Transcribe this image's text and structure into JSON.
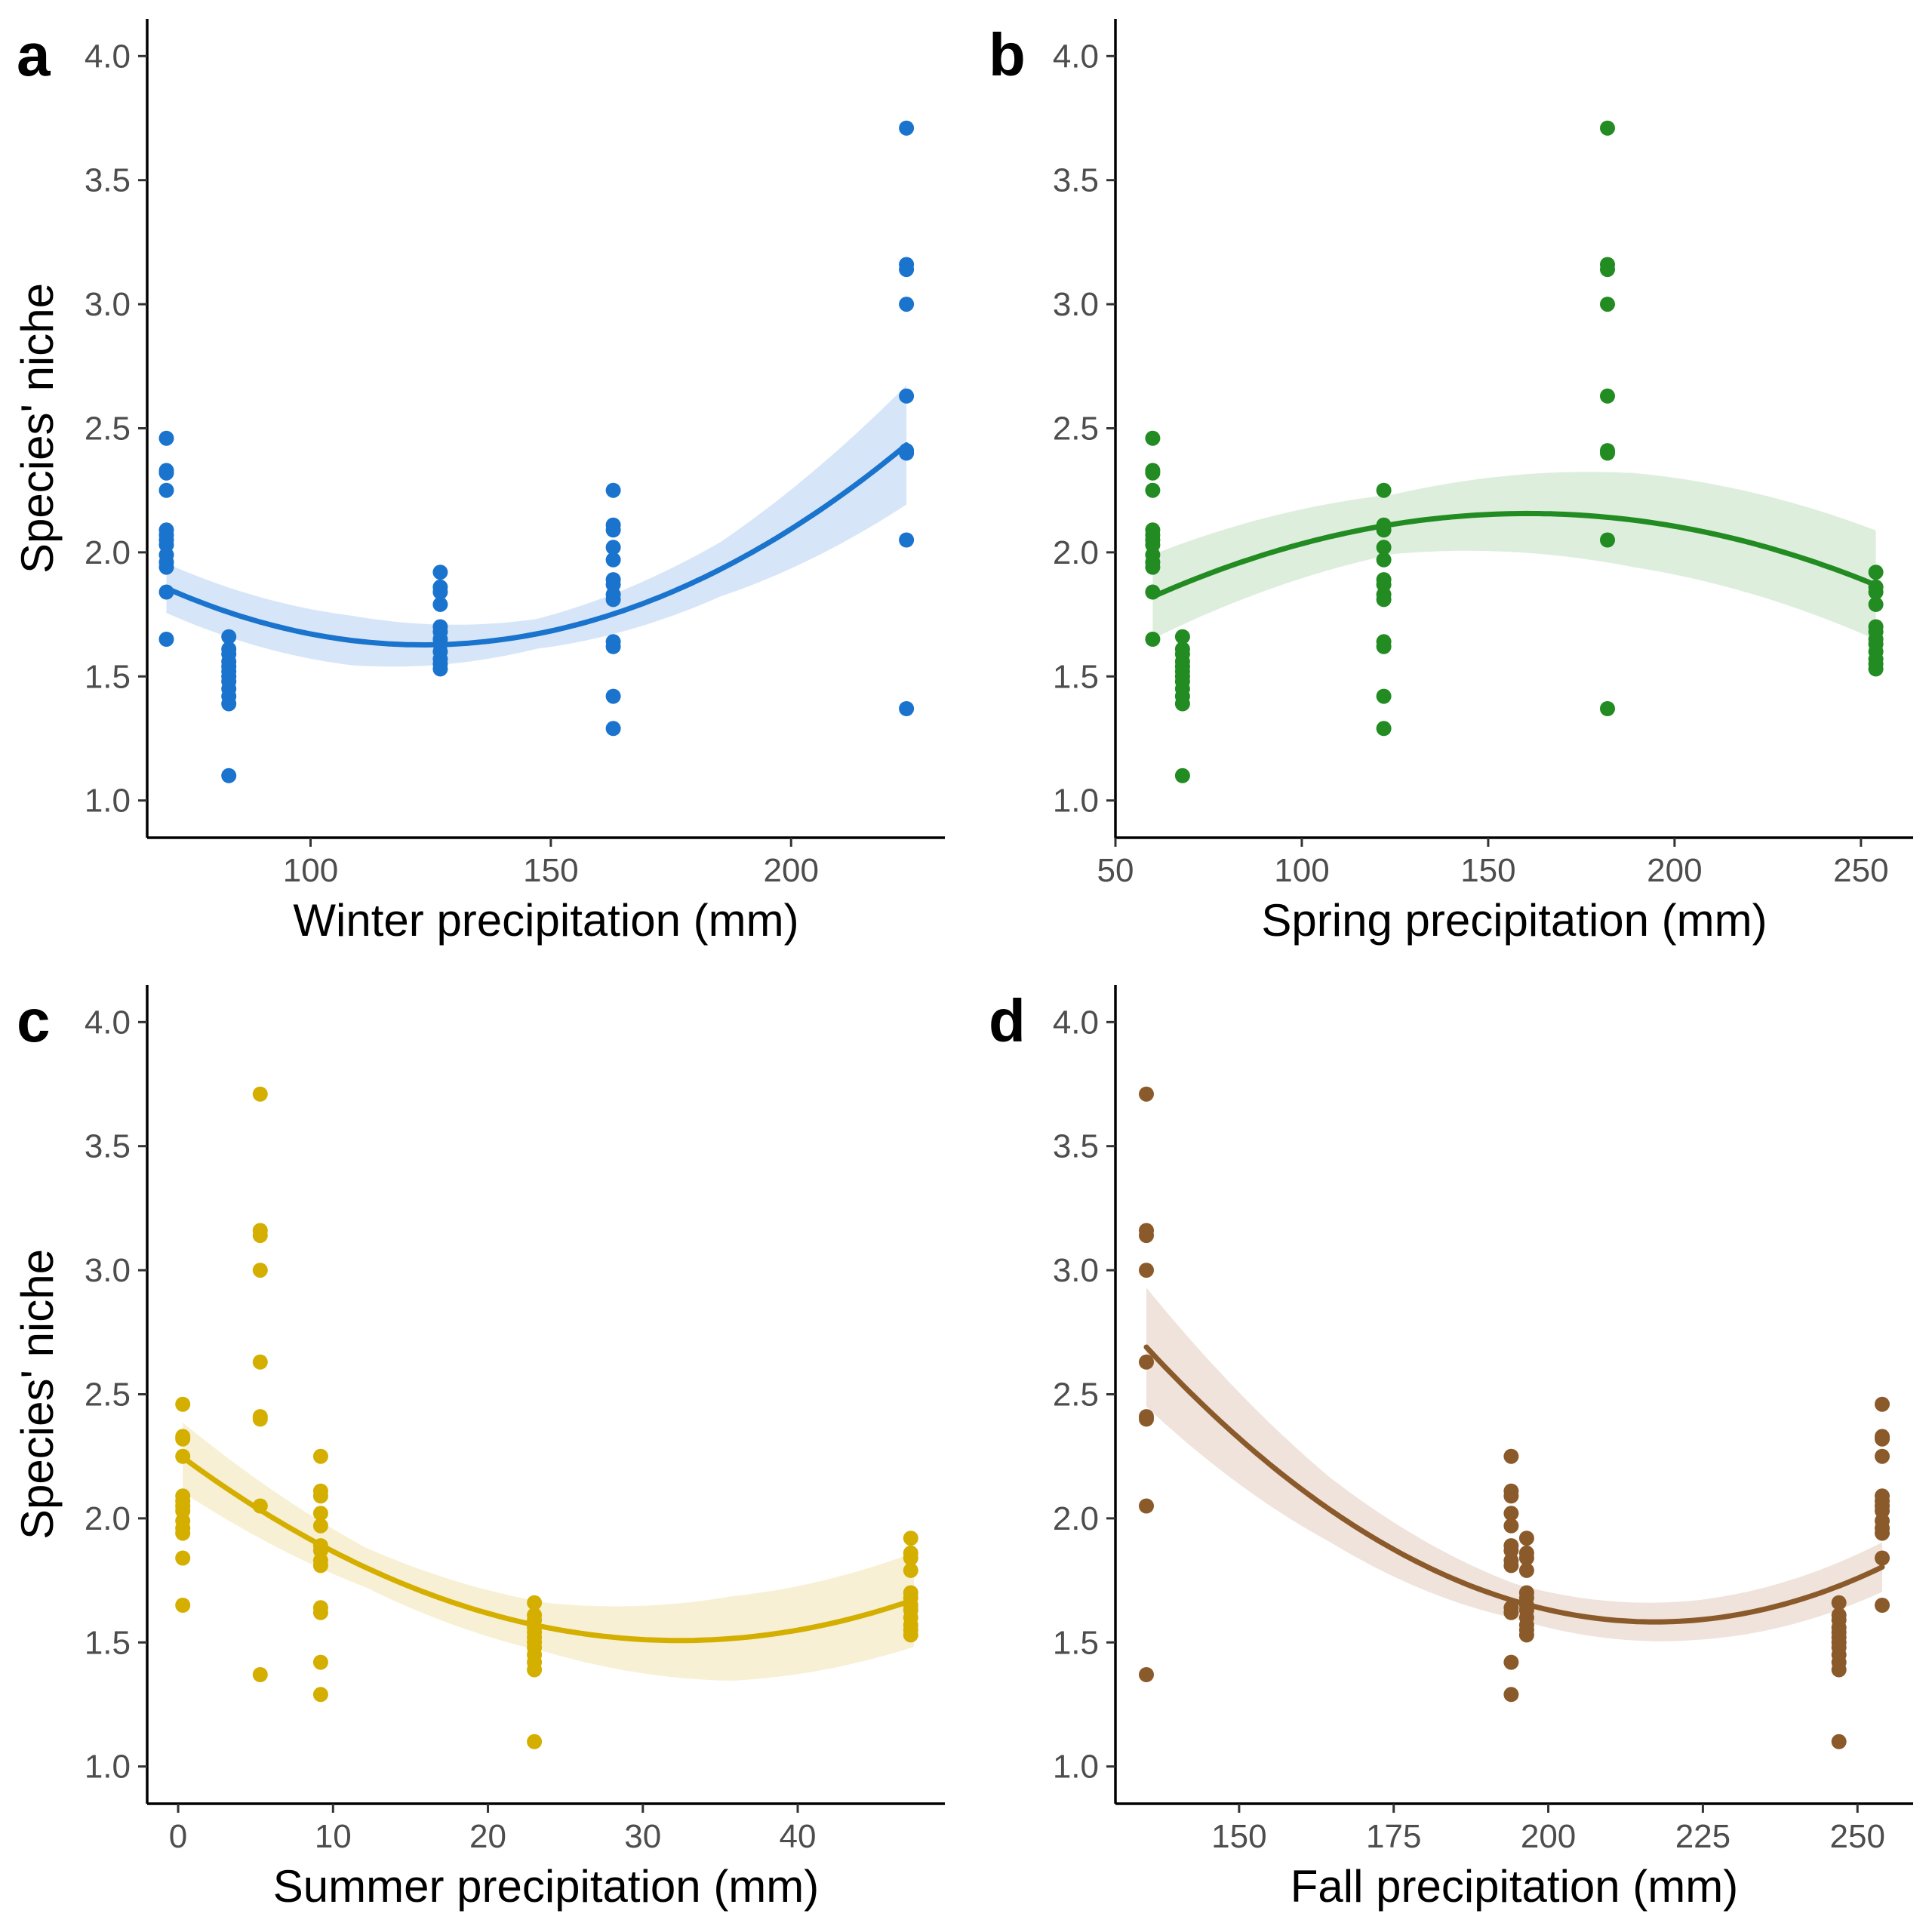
{
  "chart_data": [
    {
      "type": "scatter",
      "panel": "a",
      "xlabel": "Winter precipitation (mm)",
      "ylabel": "Species' niche",
      "xlim": [
        66,
        232
      ],
      "ylim": [
        0.85,
        4.15
      ],
      "xticks": [
        100,
        150,
        200
      ],
      "yticks": [
        1.0,
        1.5,
        2.0,
        2.5,
        3.0,
        3.5,
        4.0
      ],
      "color": "#1a73cc",
      "band_color": "#d6e6f8",
      "fit": {
        "method": "quadratic",
        "coef": [
          2.8445,
          -0.019712,
          7.98e-05
        ],
        "x_range": [
          70,
          224
        ],
        "se": [
          0.1,
          0.1,
          0.06,
          0.11,
          0.24
        ]
      },
      "points": [
        [
          70,
          2.46
        ],
        [
          70,
          2.33
        ],
        [
          70,
          2.32
        ],
        [
          70,
          2.25
        ],
        [
          70,
          2.09
        ],
        [
          70,
          2.07
        ],
        [
          70,
          2.05
        ],
        [
          70,
          2.03
        ],
        [
          70,
          1.99
        ],
        [
          70,
          1.96
        ],
        [
          70,
          1.94
        ],
        [
          70,
          1.84
        ],
        [
          70,
          1.65
        ],
        [
          83,
          1.66
        ],
        [
          83,
          1.61
        ],
        [
          83,
          1.59
        ],
        [
          83,
          1.56
        ],
        [
          83,
          1.54
        ],
        [
          83,
          1.52
        ],
        [
          83,
          1.5
        ],
        [
          83,
          1.48
        ],
        [
          83,
          1.45
        ],
        [
          83,
          1.42
        ],
        [
          83,
          1.39
        ],
        [
          83,
          1.1
        ],
        [
          127,
          1.92
        ],
        [
          127,
          1.86
        ],
        [
          127,
          1.84
        ],
        [
          127,
          1.79
        ],
        [
          127,
          1.7
        ],
        [
          127,
          1.68
        ],
        [
          127,
          1.65
        ],
        [
          127,
          1.63
        ],
        [
          127,
          1.6
        ],
        [
          127,
          1.57
        ],
        [
          127,
          1.55
        ],
        [
          127,
          1.53
        ],
        [
          163,
          2.25
        ],
        [
          163,
          2.11
        ],
        [
          163,
          2.09
        ],
        [
          163,
          2.02
        ],
        [
          163,
          1.97
        ],
        [
          163,
          1.89
        ],
        [
          163,
          1.87
        ],
        [
          163,
          1.83
        ],
        [
          163,
          1.81
        ],
        [
          163,
          1.64
        ],
        [
          163,
          1.62
        ],
        [
          163,
          1.42
        ],
        [
          163,
          1.29
        ],
        [
          224,
          3.71
        ],
        [
          224,
          3.16
        ],
        [
          224,
          3.14
        ],
        [
          224,
          3.0
        ],
        [
          224,
          2.63
        ],
        [
          224,
          2.41
        ],
        [
          224,
          2.4
        ],
        [
          224,
          2.05
        ],
        [
          224,
          1.37
        ]
      ]
    },
    {
      "type": "scatter",
      "panel": "b",
      "xlabel": "Spring precipitation (mm)",
      "ylabel": "",
      "xlim": [
        50,
        264
      ],
      "ylim": [
        0.85,
        4.15
      ],
      "xticks": [
        50,
        100,
        150,
        200,
        250
      ],
      "yticks": [
        1.0,
        1.5,
        2.0,
        2.5,
        3.0,
        3.5,
        4.0
      ],
      "color": "#228b22",
      "band_color": "#ddeedd",
      "fit": {
        "method": "quadratic",
        "coef": [
          1.3019,
          0.010637,
          -3.31e-05
        ],
        "x_range": [
          60,
          254
        ],
        "se": [
          0.17,
          0.12,
          0.19,
          0.22
        ]
      },
      "points": [
        [
          60,
          2.46
        ],
        [
          60,
          2.33
        ],
        [
          60,
          2.32
        ],
        [
          60,
          2.25
        ],
        [
          60,
          2.09
        ],
        [
          60,
          2.07
        ],
        [
          60,
          2.05
        ],
        [
          60,
          2.03
        ],
        [
          60,
          1.99
        ],
        [
          60,
          1.96
        ],
        [
          60,
          1.94
        ],
        [
          60,
          1.84
        ],
        [
          60,
          1.65
        ],
        [
          68,
          1.66
        ],
        [
          68,
          1.61
        ],
        [
          68,
          1.59
        ],
        [
          68,
          1.56
        ],
        [
          68,
          1.54
        ],
        [
          68,
          1.52
        ],
        [
          68,
          1.5
        ],
        [
          68,
          1.48
        ],
        [
          68,
          1.45
        ],
        [
          68,
          1.42
        ],
        [
          68,
          1.39
        ],
        [
          68,
          1.1
        ],
        [
          122,
          2.25
        ],
        [
          122,
          2.11
        ],
        [
          122,
          2.09
        ],
        [
          122,
          2.02
        ],
        [
          122,
          1.97
        ],
        [
          122,
          1.89
        ],
        [
          122,
          1.87
        ],
        [
          122,
          1.83
        ],
        [
          122,
          1.81
        ],
        [
          122,
          1.64
        ],
        [
          122,
          1.62
        ],
        [
          122,
          1.42
        ],
        [
          122,
          1.29
        ],
        [
          182,
          3.71
        ],
        [
          182,
          3.16
        ],
        [
          182,
          3.14
        ],
        [
          182,
          3.0
        ],
        [
          182,
          2.63
        ],
        [
          182,
          2.41
        ],
        [
          182,
          2.4
        ],
        [
          182,
          2.05
        ],
        [
          182,
          1.37
        ],
        [
          254,
          1.92
        ],
        [
          254,
          1.86
        ],
        [
          254,
          1.84
        ],
        [
          254,
          1.79
        ],
        [
          254,
          1.7
        ],
        [
          254,
          1.68
        ],
        [
          254,
          1.65
        ],
        [
          254,
          1.63
        ],
        [
          254,
          1.6
        ],
        [
          254,
          1.57
        ],
        [
          254,
          1.55
        ],
        [
          254,
          1.53
        ]
      ]
    },
    {
      "type": "scatter",
      "panel": "c",
      "xlabel": "Summer precipitation (mm)",
      "ylabel": "Species' niche",
      "xlim": [
        -2,
        49.5
      ],
      "ylim": [
        0.85,
        4.15
      ],
      "xticks": [
        0,
        10,
        20,
        30,
        40
      ],
      "yticks": [
        1.0,
        1.5,
        2.0,
        2.5,
        3.0,
        3.5,
        4.0
      ],
      "color": "#d4af00",
      "band_color": "#f8f0d4",
      "fit": {
        "method": "quadratic",
        "coef": [
          2.2596,
          -0.046472,
          0.000718
        ],
        "x_range": [
          0.3,
          47.5
        ],
        "se": [
          0.14,
          0.08,
          0.1,
          0.17,
          0.19
        ]
      },
      "points": [
        [
          0.3,
          2.46
        ],
        [
          0.3,
          2.33
        ],
        [
          0.3,
          2.32
        ],
        [
          0.3,
          2.25
        ],
        [
          0.3,
          2.09
        ],
        [
          0.3,
          2.07
        ],
        [
          0.3,
          2.05
        ],
        [
          0.3,
          2.03
        ],
        [
          0.3,
          1.99
        ],
        [
          0.3,
          1.96
        ],
        [
          0.3,
          1.94
        ],
        [
          0.3,
          1.84
        ],
        [
          0.3,
          1.65
        ],
        [
          5.3,
          3.71
        ],
        [
          5.3,
          3.16
        ],
        [
          5.3,
          3.14
        ],
        [
          5.3,
          3.0
        ],
        [
          5.3,
          2.63
        ],
        [
          5.3,
          2.41
        ],
        [
          5.3,
          2.4
        ],
        [
          5.3,
          2.05
        ],
        [
          5.3,
          1.37
        ],
        [
          9.2,
          2.25
        ],
        [
          9.2,
          2.11
        ],
        [
          9.2,
          2.09
        ],
        [
          9.2,
          2.02
        ],
        [
          9.2,
          1.97
        ],
        [
          9.2,
          1.89
        ],
        [
          9.2,
          1.87
        ],
        [
          9.2,
          1.83
        ],
        [
          9.2,
          1.81
        ],
        [
          9.2,
          1.64
        ],
        [
          9.2,
          1.62
        ],
        [
          9.2,
          1.42
        ],
        [
          9.2,
          1.29
        ],
        [
          23,
          1.66
        ],
        [
          23,
          1.61
        ],
        [
          23,
          1.59
        ],
        [
          23,
          1.56
        ],
        [
          23,
          1.54
        ],
        [
          23,
          1.52
        ],
        [
          23,
          1.5
        ],
        [
          23,
          1.48
        ],
        [
          23,
          1.45
        ],
        [
          23,
          1.42
        ],
        [
          23,
          1.39
        ],
        [
          23,
          1.1
        ],
        [
          47.3,
          1.92
        ],
        [
          47.3,
          1.86
        ],
        [
          47.3,
          1.84
        ],
        [
          47.3,
          1.79
        ],
        [
          47.3,
          1.7
        ],
        [
          47.3,
          1.68
        ],
        [
          47.3,
          1.65
        ],
        [
          47.3,
          1.63
        ],
        [
          47.3,
          1.6
        ],
        [
          47.3,
          1.57
        ],
        [
          47.3,
          1.55
        ],
        [
          47.3,
          1.53
        ]
      ]
    },
    {
      "type": "scatter",
      "panel": "d",
      "xlabel": "Fall precipitation (mm)",
      "ylabel": "",
      "xlim": [
        130,
        259
      ],
      "ylim": [
        0.85,
        4.15
      ],
      "xticks": [
        150,
        175,
        200,
        225,
        250
      ],
      "yticks": [
        1.0,
        1.5,
        2.0,
        2.5,
        3.0,
        3.5,
        4.0
      ],
      "color": "#8b5a2b",
      "band_color": "#efe3db",
      "fit": {
        "method": "quadratic",
        "coef": [
          9.3087,
          -0.071127,
          0.0001637
        ],
        "x_range": [
          135,
          254
        ],
        "se": [
          0.24,
          0.13,
          0.07,
          0.08,
          0.1
        ]
      },
      "points": [
        [
          135,
          3.71
        ],
        [
          135,
          3.16
        ],
        [
          135,
          3.14
        ],
        [
          135,
          3.0
        ],
        [
          135,
          2.63
        ],
        [
          135,
          2.41
        ],
        [
          135,
          2.4
        ],
        [
          135,
          2.05
        ],
        [
          135,
          1.37
        ],
        [
          194,
          2.25
        ],
        [
          194,
          2.11
        ],
        [
          194,
          2.09
        ],
        [
          194,
          2.02
        ],
        [
          194,
          1.97
        ],
        [
          194,
          1.89
        ],
        [
          194,
          1.87
        ],
        [
          194,
          1.83
        ],
        [
          194,
          1.81
        ],
        [
          194,
          1.64
        ],
        [
          194,
          1.62
        ],
        [
          194,
          1.42
        ],
        [
          194,
          1.29
        ],
        [
          196.5,
          1.92
        ],
        [
          196.5,
          1.86
        ],
        [
          196.5,
          1.84
        ],
        [
          196.5,
          1.79
        ],
        [
          196.5,
          1.7
        ],
        [
          196.5,
          1.68
        ],
        [
          196.5,
          1.65
        ],
        [
          196.5,
          1.63
        ],
        [
          196.5,
          1.6
        ],
        [
          196.5,
          1.57
        ],
        [
          196.5,
          1.55
        ],
        [
          196.5,
          1.53
        ],
        [
          247,
          1.66
        ],
        [
          247,
          1.61
        ],
        [
          247,
          1.59
        ],
        [
          247,
          1.56
        ],
        [
          247,
          1.54
        ],
        [
          247,
          1.52
        ],
        [
          247,
          1.5
        ],
        [
          247,
          1.48
        ],
        [
          247,
          1.45
        ],
        [
          247,
          1.42
        ],
        [
          247,
          1.39
        ],
        [
          247,
          1.1
        ],
        [
          254,
          2.46
        ],
        [
          254,
          2.33
        ],
        [
          254,
          2.32
        ],
        [
          254,
          2.25
        ],
        [
          254,
          2.09
        ],
        [
          254,
          2.07
        ],
        [
          254,
          2.05
        ],
        [
          254,
          2.03
        ],
        [
          254,
          1.99
        ],
        [
          254,
          1.96
        ],
        [
          254,
          1.94
        ],
        [
          254,
          1.84
        ],
        [
          254,
          1.65
        ]
      ]
    }
  ]
}
